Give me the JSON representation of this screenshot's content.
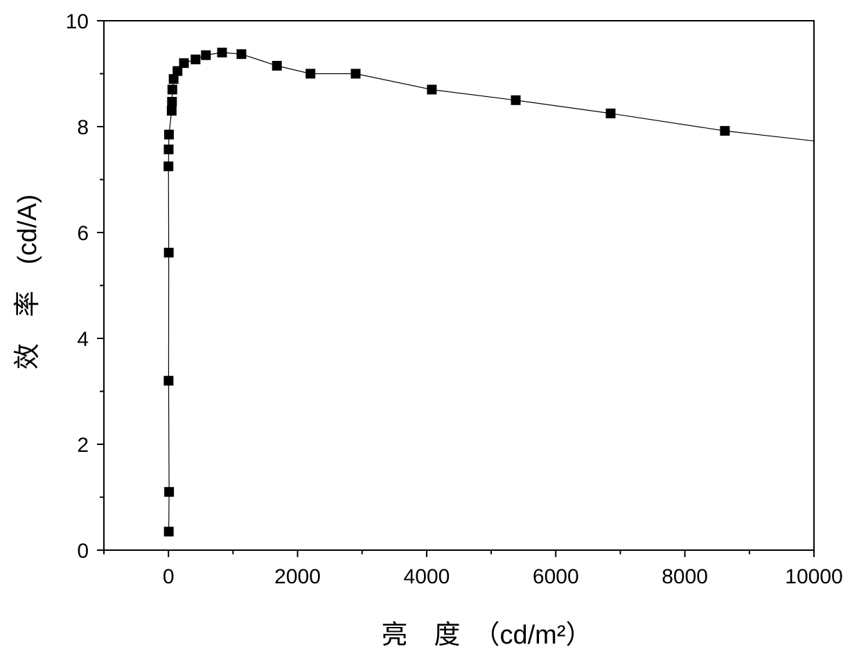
{
  "chart_data": {
    "type": "line",
    "title": "",
    "xlabel": "亮　度　（cd/m²）",
    "ylabel": "效　率　(cd/A)",
    "xlim": [
      -1000,
      10000
    ],
    "ylim": [
      0,
      10
    ],
    "x_ticks": [
      0,
      2000,
      4000,
      6000,
      8000,
      10000
    ],
    "x_tick_labels": [
      "0",
      "2000",
      "4000",
      "6000",
      "8000",
      "10000"
    ],
    "y_ticks": [
      0,
      2,
      4,
      6,
      8,
      10
    ],
    "y_tick_labels": [
      "0",
      "2",
      "4",
      "6",
      "8",
      "10"
    ],
    "x_minor_step": 1000,
    "y_minor_step": 1,
    "grid": false,
    "legend": "none",
    "marker": "square",
    "colors": {
      "series": "#000000",
      "axis": "#000000",
      "background": "#ffffff"
    },
    "series": [
      {
        "points": [
          {
            "x": 5,
            "y": 0.35
          },
          {
            "x": 10,
            "y": 1.1
          },
          {
            "x": 2,
            "y": 3.2
          },
          {
            "x": 5,
            "y": 5.62
          },
          {
            "x": 0,
            "y": 7.25
          },
          {
            "x": 3,
            "y": 7.57
          },
          {
            "x": 8,
            "y": 7.85
          },
          {
            "x": 50,
            "y": 8.3
          },
          {
            "x": 55,
            "y": 8.47
          },
          {
            "x": 60,
            "y": 8.7
          },
          {
            "x": 80,
            "y": 8.9
          },
          {
            "x": 140,
            "y": 9.05
          },
          {
            "x": 240,
            "y": 9.2
          },
          {
            "x": 420,
            "y": 9.27
          },
          {
            "x": 580,
            "y": 9.35
          },
          {
            "x": 830,
            "y": 9.4
          },
          {
            "x": 1130,
            "y": 9.37
          },
          {
            "x": 1680,
            "y": 9.15
          },
          {
            "x": 2200,
            "y": 9.0
          },
          {
            "x": 2900,
            "y": 9.0
          },
          {
            "x": 4080,
            "y": 8.7
          },
          {
            "x": 5380,
            "y": 8.5
          },
          {
            "x": 6850,
            "y": 8.25
          },
          {
            "x": 8620,
            "y": 7.92
          }
        ],
        "line_extends_to": {
          "x": 10000,
          "y": 7.73
        }
      }
    ]
  }
}
